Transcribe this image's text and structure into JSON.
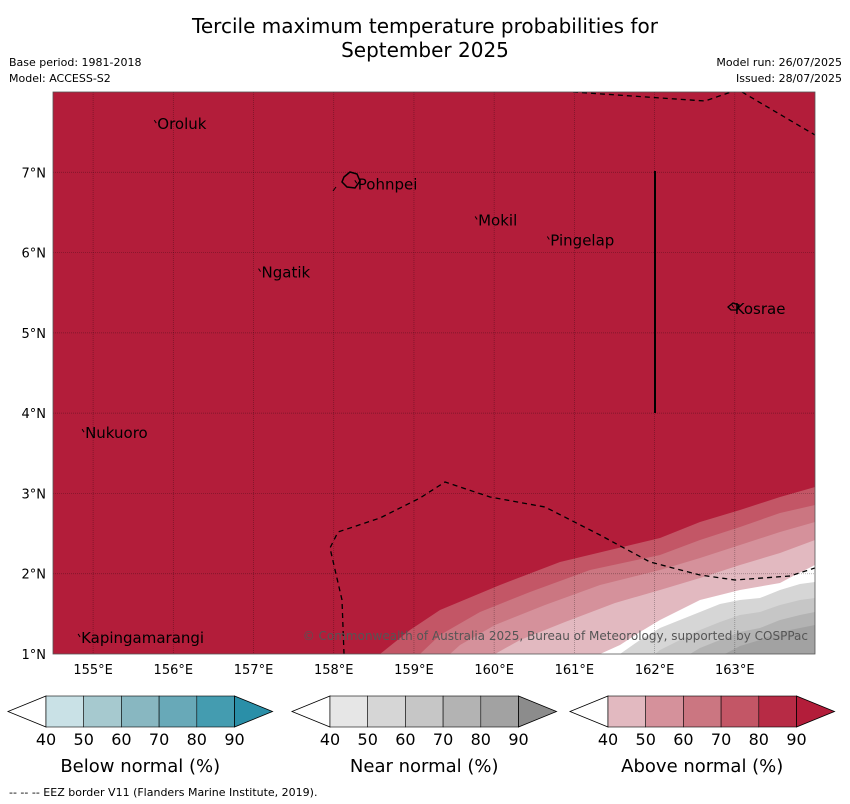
{
  "title": {
    "line1": "Tercile maximum temperature probabilities for",
    "line2": "September 2025"
  },
  "meta": {
    "base_period": "Base period: 1981-2018",
    "model": "Model: ACCESS-S2",
    "model_run": "Model run: 26/07/2025",
    "issued": "Issued: 28/07/2025"
  },
  "map": {
    "lon_range": [
      154.5,
      164.0
    ],
    "lat_range": [
      1.0,
      8.0
    ],
    "lon_ticks": [
      "155°E",
      "156°E",
      "157°E",
      "158°E",
      "159°E",
      "160°E",
      "161°E",
      "162°E",
      "163°E"
    ],
    "lat_ticks": [
      "1°N",
      "2°N",
      "3°N",
      "4°N",
      "5°N",
      "6°N",
      "7°N"
    ],
    "grid": true,
    "background_category": "Above normal",
    "background_probability": "80-90",
    "places": [
      {
        "name": "Oroluk",
        "lon": 155.8,
        "lat": 7.6
      },
      {
        "name": "Pohnpei",
        "lon": 158.3,
        "lat": 6.85
      },
      {
        "name": "Mokil",
        "lon": 159.8,
        "lat": 6.4
      },
      {
        "name": "Pingelap",
        "lon": 160.7,
        "lat": 6.15
      },
      {
        "name": "Ngatik",
        "lon": 157.1,
        "lat": 5.75
      },
      {
        "name": "Kosrae",
        "lon": 163.0,
        "lat": 5.3
      },
      {
        "name": "Nukuoro",
        "lon": 154.9,
        "lat": 3.75
      },
      {
        "name": "Kapingamarangi",
        "lon": 154.85,
        "lat": 1.2
      }
    ],
    "copyright": "© Commonwealth of Australia 2025, Bureau of Meteorology, supported by COSPPac"
  },
  "legends": [
    {
      "label": "Below normal (%)",
      "ticks": [
        "40",
        "50",
        "60",
        "70",
        "80",
        "90"
      ],
      "colors": [
        "#ffffff",
        "#c9e1e6",
        "#a6c9cf",
        "#88b7c1",
        "#68a9b8",
        "#449cb0",
        "#2a8fa8"
      ]
    },
    {
      "label": "Near normal (%)",
      "ticks": [
        "40",
        "50",
        "60",
        "70",
        "80",
        "90"
      ],
      "colors": [
        "#ffffff",
        "#e6e6e6",
        "#d6d6d6",
        "#c6c6c6",
        "#b3b3b3",
        "#a2a2a2",
        "#8c8c8c"
      ]
    },
    {
      "label": "Above normal (%)",
      "ticks": [
        "40",
        "50",
        "60",
        "70",
        "80",
        "90"
      ],
      "colors": [
        "#ffffff",
        "#e2b9c0",
        "#d5919b",
        "#cb7681",
        "#c35666",
        "#b72b45",
        "#b31d3a"
      ]
    }
  ],
  "footnote": "--  --  -- EEZ border V11 (Flanders Marine Institute, 2019).",
  "colors": {
    "above_80": "#b31d3a",
    "above_70": "#c35666",
    "above_60": "#cb7681",
    "above_50": "#d5919b",
    "near_40_50": "#d6d6d6",
    "near_50_60": "#c6c6c6",
    "near_60_70": "#b3b3b3",
    "near_70_80": "#a2a2a2"
  }
}
